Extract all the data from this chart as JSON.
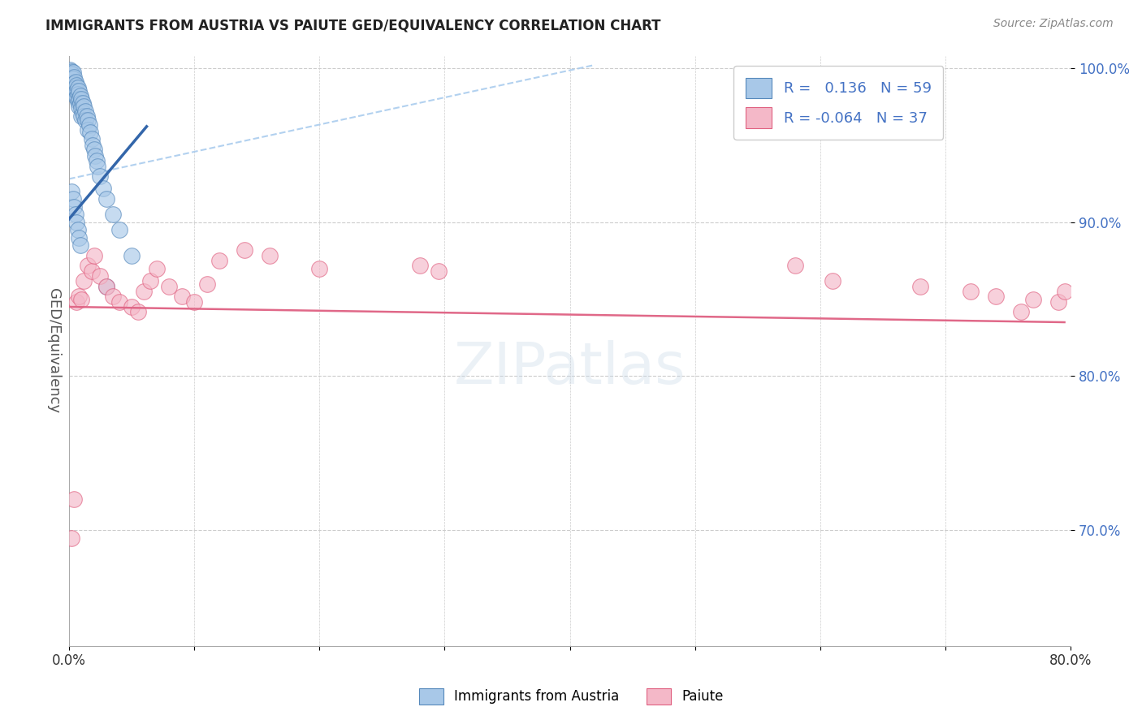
{
  "title": "IMMIGRANTS FROM AUSTRIA VS PAIUTE GED/EQUIVALENCY CORRELATION CHART",
  "source": "Source: ZipAtlas.com",
  "ylabel": "GED/Equivalency",
  "legend_label1": "Immigrants from Austria",
  "legend_label2": "Paiute",
  "R1": 0.136,
  "N1": 59,
  "R2": -0.064,
  "N2": 37,
  "xlim": [
    0.0,
    0.8
  ],
  "ylim": [
    0.625,
    1.008
  ],
  "xticks": [
    0.0,
    0.1,
    0.2,
    0.3,
    0.4,
    0.5,
    0.6,
    0.7,
    0.8
  ],
  "yticks": [
    0.7,
    0.8,
    0.9,
    1.0
  ],
  "ytick_labels": [
    "70.0%",
    "80.0%",
    "90.0%",
    "100.0%"
  ],
  "xtick_labels": [
    "0.0%",
    "",
    "",
    "",
    "",
    "",
    "",
    "",
    "80.0%"
  ],
  "color_blue": "#a8c8e8",
  "color_pink": "#f4b8c8",
  "color_blue_edge": "#5588bb",
  "color_pink_edge": "#e06080",
  "color_blue_line": "#3366aa",
  "color_pink_line": "#e06888",
  "color_dashed": "#aaccee",
  "background": "#ffffff",
  "grid_color": "#cccccc",
  "blue_x": [
    0.001,
    0.001,
    0.002,
    0.002,
    0.003,
    0.003,
    0.003,
    0.004,
    0.004,
    0.004,
    0.005,
    0.005,
    0.005,
    0.006,
    0.006,
    0.006,
    0.007,
    0.007,
    0.007,
    0.008,
    0.008,
    0.008,
    0.009,
    0.009,
    0.01,
    0.01,
    0.01,
    0.011,
    0.011,
    0.012,
    0.012,
    0.013,
    0.013,
    0.014,
    0.015,
    0.015,
    0.016,
    0.017,
    0.018,
    0.019,
    0.02,
    0.021,
    0.022,
    0.023,
    0.025,
    0.027,
    0.03,
    0.035,
    0.04,
    0.05,
    0.002,
    0.003,
    0.004,
    0.005,
    0.006,
    0.007,
    0.008,
    0.009,
    0.03
  ],
  "blue_y": [
    0.997,
    0.999,
    0.998,
    0.996,
    0.997,
    0.993,
    0.988,
    0.994,
    0.99,
    0.986,
    0.991,
    0.987,
    0.983,
    0.989,
    0.985,
    0.981,
    0.987,
    0.983,
    0.978,
    0.985,
    0.98,
    0.975,
    0.982,
    0.977,
    0.98,
    0.974,
    0.969,
    0.977,
    0.971,
    0.975,
    0.969,
    0.972,
    0.966,
    0.969,
    0.966,
    0.96,
    0.963,
    0.958,
    0.954,
    0.95,
    0.947,
    0.943,
    0.94,
    0.936,
    0.93,
    0.922,
    0.915,
    0.905,
    0.895,
    0.878,
    0.92,
    0.915,
    0.91,
    0.905,
    0.9,
    0.895,
    0.89,
    0.885,
    0.858
  ],
  "pink_x": [
    0.002,
    0.004,
    0.006,
    0.008,
    0.01,
    0.012,
    0.015,
    0.018,
    0.02,
    0.025,
    0.03,
    0.035,
    0.04,
    0.05,
    0.055,
    0.06,
    0.065,
    0.07,
    0.08,
    0.09,
    0.1,
    0.11,
    0.12,
    0.14,
    0.16,
    0.2,
    0.28,
    0.295,
    0.58,
    0.61,
    0.68,
    0.72,
    0.74,
    0.76,
    0.77,
    0.79,
    0.795
  ],
  "pink_y": [
    0.695,
    0.72,
    0.848,
    0.852,
    0.85,
    0.862,
    0.872,
    0.868,
    0.878,
    0.865,
    0.858,
    0.852,
    0.848,
    0.845,
    0.842,
    0.855,
    0.862,
    0.87,
    0.858,
    0.852,
    0.848,
    0.86,
    0.875,
    0.882,
    0.878,
    0.87,
    0.872,
    0.868,
    0.872,
    0.862,
    0.858,
    0.855,
    0.852,
    0.842,
    0.85,
    0.848,
    0.855
  ],
  "blue_line_x": [
    0.0,
    0.062
  ],
  "blue_line_y": [
    0.902,
    0.962
  ],
  "pink_line_x": [
    0.0,
    0.795
  ],
  "pink_line_y": [
    0.845,
    0.835
  ],
  "dashed_line_x": [
    0.0,
    0.42
  ],
  "dashed_line_y": [
    0.928,
    1.002
  ]
}
